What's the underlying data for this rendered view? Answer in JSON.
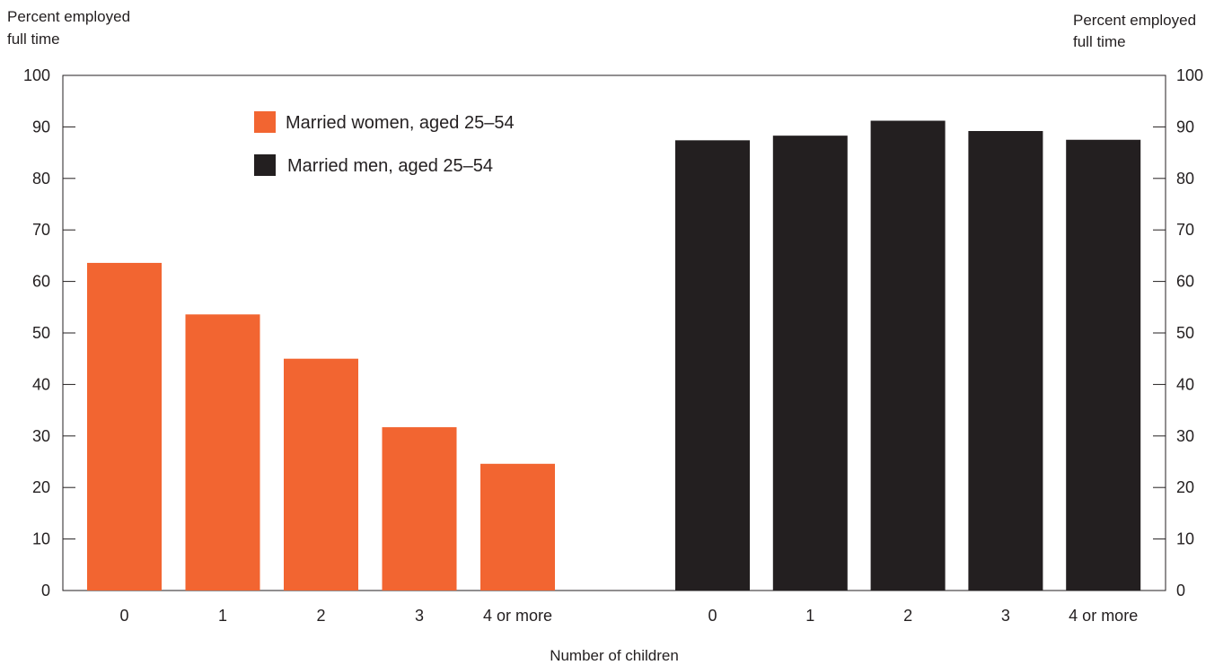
{
  "chart_data": {
    "type": "bar",
    "left_axis_title": [
      "Percent employed",
      "full time"
    ],
    "right_axis_title": [
      "Percent employed",
      "full time"
    ],
    "xlabel": "Number of children",
    "ylim": [
      0,
      100
    ],
    "yticks": [
      0,
      10,
      20,
      30,
      40,
      50,
      60,
      70,
      80,
      90,
      100
    ],
    "grid": false,
    "legend_position": "top-left",
    "groups": [
      {
        "name": "Married women, aged 25–54",
        "color": "#f26531",
        "categories": [
          "0",
          "1",
          "2",
          "3",
          "4 or more"
        ],
        "values": [
          63.6,
          53.6,
          45.0,
          31.7,
          24.6
        ]
      },
      {
        "name": "Married men, aged 25–54",
        "color": "#231f20",
        "categories": [
          "0",
          "1",
          "2",
          "3",
          "4 or more"
        ],
        "values": [
          87.4,
          88.3,
          91.2,
          89.2,
          87.5
        ]
      }
    ]
  }
}
